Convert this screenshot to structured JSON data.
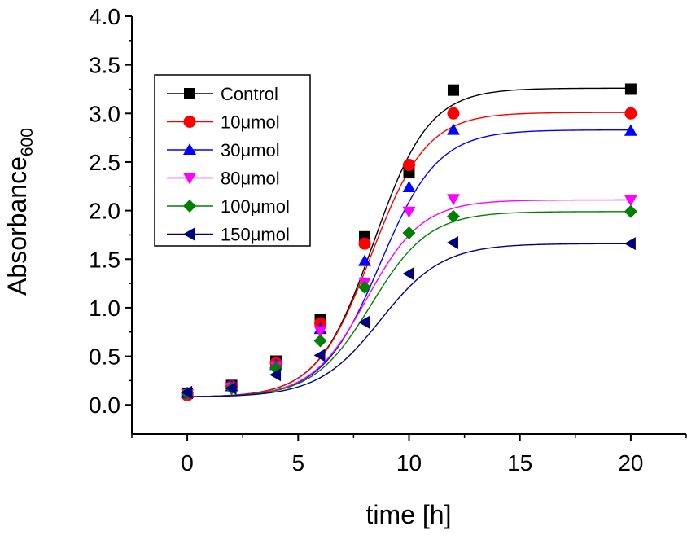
{
  "chart_data": {
    "type": "scatter",
    "title": "",
    "xlabel": "time [h]",
    "ylabel_main": "Absorbance",
    "ylabel_subscript": "600",
    "xlim": [
      -2.5,
      22.5
    ],
    "ylim": [
      -0.3,
      4.0
    ],
    "xticks": [
      0,
      5,
      10,
      15,
      20
    ],
    "xtick_labels": [
      "0",
      "5",
      "10",
      "15",
      "20"
    ],
    "yticks": [
      0.0,
      0.5,
      1.0,
      1.5,
      2.0,
      2.5,
      3.0,
      3.5,
      4.0
    ],
    "ytick_labels": [
      "0.0",
      "0.5",
      "1.0",
      "1.5",
      "2.0",
      "2.5",
      "3.0",
      "3.5",
      "4.0"
    ],
    "grid": false,
    "legend_position": "top-left",
    "x": [
      0,
      2,
      4,
      6,
      8,
      10,
      12,
      20
    ],
    "series": [
      {
        "name": "Control",
        "color": "#000000",
        "marker": "square",
        "values": [
          0.12,
          0.2,
          0.45,
          0.88,
          1.73,
          2.39,
          3.24,
          3.25
        ],
        "fit": {
          "A1": 0.08,
          "A2": 3.26,
          "x0": 8.4,
          "dx": 1.25
        }
      },
      {
        "name": "10μmol",
        "color": "#ff0000",
        "marker": "circle",
        "values": [
          0.1,
          0.19,
          0.43,
          0.84,
          1.66,
          2.47,
          3.0,
          3.0
        ],
        "fit": {
          "A1": 0.08,
          "A2": 3.01,
          "x0": 8.3,
          "dx": 1.25
        }
      },
      {
        "name": "30μmol",
        "color": "#0000ff",
        "marker": "triangle-up",
        "values": [
          0.12,
          0.19,
          0.41,
          0.78,
          1.48,
          2.24,
          2.83,
          2.82
        ],
        "fit": {
          "A1": 0.08,
          "A2": 2.83,
          "x0": 8.7,
          "dx": 1.3
        }
      },
      {
        "name": "80μmol",
        "color": "#ff00ff",
        "marker": "triangle-down",
        "values": [
          0.11,
          0.18,
          0.4,
          0.76,
          1.26,
          1.99,
          2.12,
          2.11
        ],
        "fit": {
          "A1": 0.08,
          "A2": 2.11,
          "x0": 8.1,
          "dx": 1.25
        }
      },
      {
        "name": "100μmol",
        "color": "#008000",
        "marker": "diamond",
        "values": [
          0.12,
          0.17,
          0.38,
          0.66,
          1.21,
          1.77,
          1.94,
          1.99
        ],
        "fit": {
          "A1": 0.08,
          "A2": 1.99,
          "x0": 8.3,
          "dx": 1.3
        }
      },
      {
        "name": "150μmol",
        "color": "#000080",
        "marker": "triangle-left",
        "values": [
          0.13,
          0.17,
          0.31,
          0.51,
          0.85,
          1.35,
          1.67,
          1.66
        ],
        "fit": {
          "A1": 0.08,
          "A2": 1.66,
          "x0": 8.7,
          "dx": 1.4
        }
      }
    ]
  }
}
